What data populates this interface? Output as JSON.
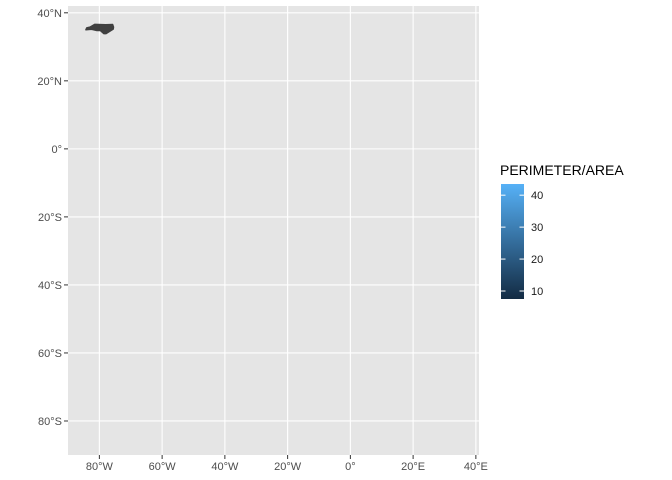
{
  "chart_data": {
    "type": "map",
    "x_axis": {
      "unit": "longitude",
      "range": [
        -90,
        41
      ],
      "ticks": [
        {
          "value": -80,
          "label": "80°W"
        },
        {
          "value": -60,
          "label": "60°W"
        },
        {
          "value": -40,
          "label": "40°W"
        },
        {
          "value": -20,
          "label": "20°W"
        },
        {
          "value": 0,
          "label": "0°"
        },
        {
          "value": 20,
          "label": "20°E"
        },
        {
          "value": 40,
          "label": "40°E"
        }
      ]
    },
    "y_axis": {
      "unit": "latitude",
      "range": [
        -90,
        42
      ],
      "ticks": [
        {
          "value": 40,
          "label": "40°N"
        },
        {
          "value": 20,
          "label": "20°N"
        },
        {
          "value": 0,
          "label": "0°"
        },
        {
          "value": -20,
          "label": "20°S"
        },
        {
          "value": -40,
          "label": "40°S"
        },
        {
          "value": -60,
          "label": "60°S"
        },
        {
          "value": -80,
          "label": "80°S"
        }
      ]
    },
    "grid": true,
    "panel_background": "#e5e5e5",
    "grid_color": "#ffffff",
    "region": {
      "fill": "#404040",
      "outline_lonlat": [
        [
          -84.3,
          35.0
        ],
        [
          -84.0,
          35.6
        ],
        [
          -83.0,
          35.8
        ],
        [
          -81.5,
          36.6
        ],
        [
          -78.0,
          36.5
        ],
        [
          -75.8,
          36.55
        ],
        [
          -75.5,
          35.8
        ],
        [
          -75.6,
          35.2
        ],
        [
          -76.5,
          34.7
        ],
        [
          -77.9,
          33.9
        ],
        [
          -78.6,
          33.9
        ],
        [
          -79.7,
          34.8
        ],
        [
          -80.8,
          34.8
        ],
        [
          -82.5,
          35.15
        ],
        [
          -84.3,
          35.0
        ]
      ]
    },
    "legend": {
      "title": "PERIMETER/AREA",
      "position": "right",
      "min": 7.5,
      "max": 43.5,
      "color_low": "#132b43",
      "color_high": "#56b1f7",
      "ticks": [
        {
          "value": 10,
          "label": "10"
        },
        {
          "value": 20,
          "label": "20"
        },
        {
          "value": 30,
          "label": "30"
        },
        {
          "value": 40,
          "label": "40"
        }
      ]
    }
  }
}
